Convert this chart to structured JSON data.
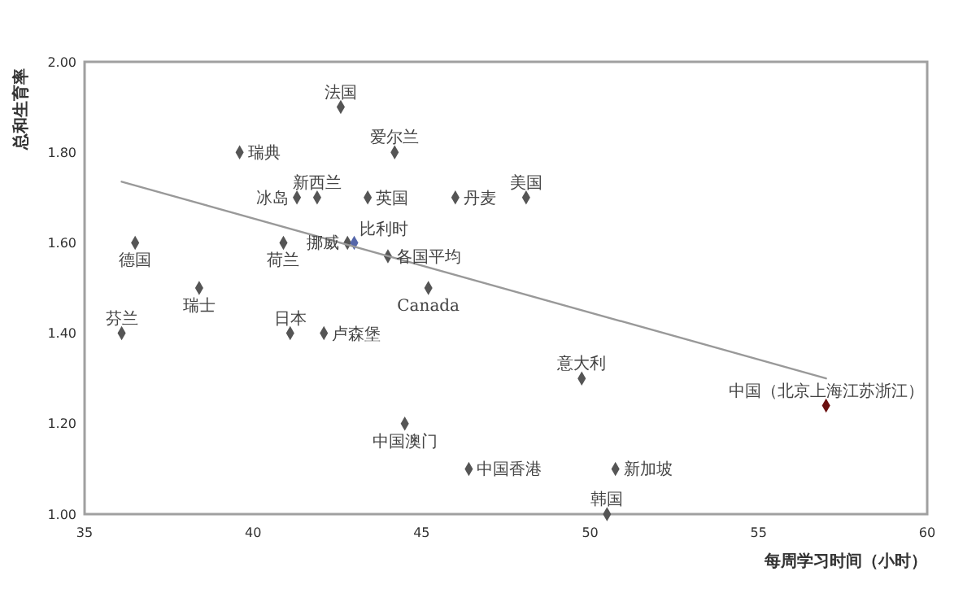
{
  "chart_data": {
    "type": "scatter",
    "xlabel": "每周学习时间（小时）",
    "ylabel": "总和生育率",
    "xlim": [
      35,
      60
    ],
    "xticks": [
      35,
      40,
      45,
      50,
      55,
      60
    ],
    "ylim": [
      1.0,
      2.0
    ],
    "yticks": [
      {
        "value": 1.0,
        "label": "1.00"
      },
      {
        "value": 1.2,
        "label": "1.20"
      },
      {
        "value": 1.4,
        "label": "1.40"
      },
      {
        "value": 1.6,
        "label": "1.60"
      },
      {
        "value": 1.8,
        "label": "1.80"
      },
      {
        "value": 2.0,
        "label": "2.00"
      }
    ],
    "grid": false,
    "marker": "diamond",
    "series": [
      {
        "x": [
          42.6,
          39.6,
          44.2,
          41.3,
          41.9,
          43.4,
          46.0,
          48.1,
          36.5,
          40.9,
          42.8,
          43.0,
          44.0,
          45.2,
          38.4,
          36.1,
          41.1,
          42.1,
          44.5,
          46.4,
          49.75,
          57.0,
          50.75,
          50.5
        ],
        "values": [
          1.9,
          1.8,
          1.8,
          1.7,
          1.7,
          1.7,
          1.7,
          1.7,
          1.6,
          1.6,
          1.6,
          1.6,
          1.57,
          1.5,
          1.5,
          1.4,
          1.4,
          1.4,
          1.2,
          1.1,
          1.3,
          1.24,
          1.1,
          1.0
        ],
        "colors": [
          "#555555",
          "#555555",
          "#555555",
          "#555555",
          "#555555",
          "#555555",
          "#555555",
          "#555555",
          "#555555",
          "#555555",
          "#555555",
          "#5566aa",
          "#555555",
          "#555555",
          "#555555",
          "#555555",
          "#555555",
          "#555555",
          "#555555",
          "#555555",
          "#555555",
          "#6b1010",
          "#555555",
          "#555555"
        ]
      },
      {
        "type": "line",
        "color": "#999999",
        "marker": "none",
        "line_style": "solid",
        "x": [
          36.1,
          57.0
        ],
        "values": [
          1.735,
          1.3
        ]
      }
    ],
    "annotations": [
      {
        "text": "法国",
        "x": 42.6,
        "y": 1.9
      },
      {
        "text": "瑞典",
        "x": 39.6,
        "y": 1.8
      },
      {
        "text": "爱尔兰",
        "x": 44.2,
        "y": 1.8
      },
      {
        "text": "冰岛",
        "x": 41.3,
        "y": 1.7
      },
      {
        "text": "新西兰",
        "x": 41.9,
        "y": 1.7
      },
      {
        "text": "英国",
        "x": 43.4,
        "y": 1.7
      },
      {
        "text": "丹麦",
        "x": 46.0,
        "y": 1.7
      },
      {
        "text": "美国",
        "x": 48.1,
        "y": 1.7
      },
      {
        "text": "德国",
        "x": 36.5,
        "y": 1.6
      },
      {
        "text": "荷兰",
        "x": 40.9,
        "y": 1.6
      },
      {
        "text": "挪威",
        "x": 42.8,
        "y": 1.6
      },
      {
        "text": "比利时",
        "x": 43.0,
        "y": 1.6
      },
      {
        "text": "各国平均",
        "x": 44.0,
        "y": 1.57
      },
      {
        "text": "Canada",
        "x": 45.2,
        "y": 1.5
      },
      {
        "text": "瑞士",
        "x": 38.4,
        "y": 1.5
      },
      {
        "text": "芬兰",
        "x": 36.1,
        "y": 1.4
      },
      {
        "text": "日本",
        "x": 41.1,
        "y": 1.4
      },
      {
        "text": "卢森堡",
        "x": 42.1,
        "y": 1.4
      },
      {
        "text": "中国澳门",
        "x": 44.5,
        "y": 1.2
      },
      {
        "text": "中国香港",
        "x": 46.4,
        "y": 1.1
      },
      {
        "text": "意大利",
        "x": 49.75,
        "y": 1.3
      },
      {
        "text": "中国（北京上海江苏浙江）",
        "x": 57.0,
        "y": 1.24
      },
      {
        "text": "新加坡",
        "x": 50.75,
        "y": 1.1
      },
      {
        "text": "韩国",
        "x": 50.5,
        "y": 1.0
      }
    ]
  }
}
